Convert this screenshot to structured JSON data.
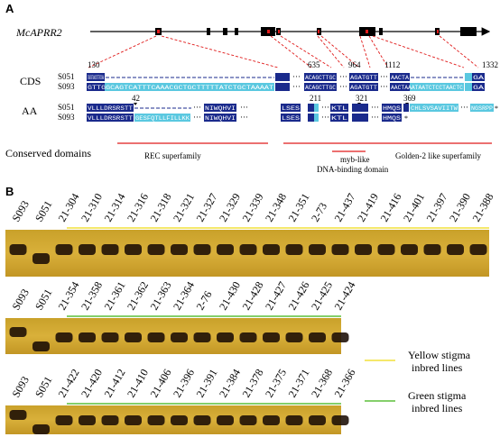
{
  "panel_a": {
    "letter": "A",
    "gene_name": "McAPRR2",
    "cds_label": "CDS",
    "aa_label": "AA",
    "conserved_label": "Conserved domains",
    "sample_top": "S051",
    "sample_bottom": "S093",
    "cds_positions": [
      "130",
      "635",
      "964",
      "1112",
      "1332"
    ],
    "aa_positions": [
      "42",
      "211",
      "321",
      "369"
    ],
    "cds_seqs": {
      "s051_b1": "GTTGGAGTCATTTCAAACGCTGCTTTTTATCTGCTAAAA",
      "s093_b1": "GTTGGCAGTCATTTCAAACGCTGCTTTTTATCTGCTAAAAT",
      "s051_b2": "ACAGCTTGC",
      "s093_b2": "ACAGCTTGC",
      "s051_b3": "AGATGTT",
      "s093_b3": "AGATGTT",
      "s051_b4": "AACTA",
      "s093_b4": "AACTAAATAATCTCCTAACTC",
      "s051_b5": "GA",
      "s093_b5": "GA"
    },
    "aa_seqs": {
      "s051_b1": "VLLLDRSRSTT",
      "s093_b1": "VLLLDRSRSTT",
      "s051_b1b": "NIWQHVI",
      "s093_b1b": "NIWQHVI",
      "s093_var1": "GESFQTLLFILLKK",
      "s051_b2": "LSES",
      "s093_b2": "LSES",
      "s051_b3": "KTL",
      "s093_b3": "KTL",
      "s051_b4": "HMQS",
      "s093_b4": "HMQS",
      "s051_tail": "CHLSVSAVIITW",
      "s051_tail2": "NGSRPP",
      "star": "*"
    },
    "domains": [
      {
        "name": "REC superfamily"
      },
      {
        "name": "myb-like",
        "name2": "DNA-binding domain"
      },
      {
        "name": "Golden-2 like superfamily"
      }
    ]
  },
  "panel_b": {
    "letter": "B",
    "gel1_lanes": [
      "S093",
      "S051",
      "21-304",
      "21-310",
      "21-314",
      "21-316",
      "21-318",
      "21-321",
      "21-327",
      "21-329",
      "21-339",
      "21-348",
      "21-351",
      "2-73",
      "21-437",
      "21-419",
      "21-416",
      "21-401",
      "21-397",
      "21-390",
      "21-388"
    ],
    "gel2_lanes": [
      "S093",
      "S051",
      "21-354",
      "21-358",
      "21-361",
      "21-362",
      "21-363",
      "21-364",
      "2-76",
      "21-430",
      "21-428",
      "21-427",
      "21-426",
      "21-425",
      "21-424"
    ],
    "gel3_lanes": [
      "S093",
      "S051",
      "21-422",
      "21-420",
      "21-412",
      "21-410",
      "21-406",
      "21-396",
      "21-391",
      "21-384",
      "21-378",
      "21-375",
      "21-371",
      "21-368",
      "21-366"
    ],
    "legend": {
      "yellow_line1": "Yellow stigma",
      "yellow_line2": "inbred lines",
      "green_line1": "Green stigma",
      "green_line2": "inbred lines"
    },
    "colors": {
      "yellow": "#f2e03a",
      "green": "#5cbf3a"
    }
  }
}
